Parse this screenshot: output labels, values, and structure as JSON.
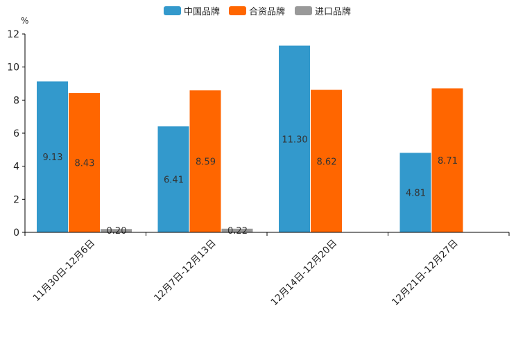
{
  "chart_data": {
    "type": "bar",
    "title": "",
    "xlabel": "",
    "ylabel": "%",
    "ylim": [
      0,
      12
    ],
    "yticks": [
      0,
      2,
      4,
      6,
      8,
      10,
      12
    ],
    "grid": false,
    "legend_position": "top-center",
    "categories": [
      "11月30日-12月6日",
      "12月7日-12月13日",
      "12月14日-12月20日",
      "12月21日-12月27日"
    ],
    "series": [
      {
        "name": "中国品牌",
        "color": "#3399cc",
        "values": [
          9.13,
          6.41,
          11.3,
          4.81
        ],
        "labels": [
          "9.13",
          "6.41",
          "11.30",
          "4.81"
        ]
      },
      {
        "name": "合资品牌",
        "color": "#ff6600",
        "values": [
          8.43,
          8.59,
          8.62,
          8.71
        ],
        "labels": [
          "8.43",
          "8.59",
          "8.62",
          "8.71"
        ]
      },
      {
        "name": "进口品牌",
        "color": "#999999",
        "values": [
          0.2,
          0.22,
          null,
          null
        ],
        "labels": [
          "0.20",
          "0.22",
          null,
          null
        ]
      }
    ]
  }
}
